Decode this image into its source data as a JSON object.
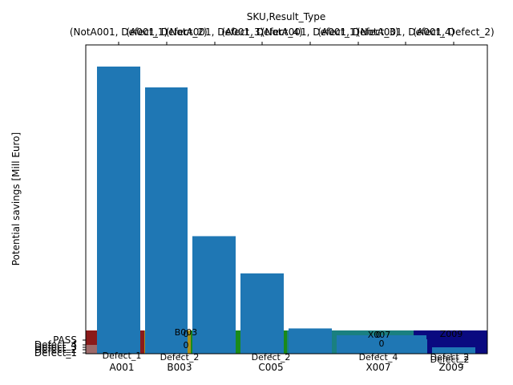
{
  "chart_data": {
    "type": "bar",
    "title": "",
    "top_axis": {
      "title": "SKU,Result_Type",
      "tick_labels": [
        "(NotA001, Defect_1)",
        "(A001, Defect_2)",
        "(NotA001, Defect_3)",
        "(A001, Defect_4)",
        "(NotA001, Defect_1)",
        "(A001, Defect_3)",
        "(NotA001, Defect_4)",
        "(A001, Defect_2)"
      ]
    },
    "ylabel": "Potential savings [Mill Euro]",
    "ylim": [
      0,
      100
    ],
    "left_ticks": [
      "PASS",
      "Defect_4",
      "Defect_3",
      "Defect_2",
      "Defect_1"
    ],
    "bottom_ticks": [
      "A001",
      "B003",
      "C005",
      "X007",
      "Z009"
    ],
    "groups": [
      {
        "sku": "A001",
        "color": "#8b1a1a",
        "label": "A001",
        "header": ""
      },
      {
        "sku": "B003",
        "color": "#a8901e",
        "label": "B003",
        "header": "B003"
      },
      {
        "sku": "C005",
        "color": "#1a8a1a",
        "label": "C005",
        "header": ""
      },
      {
        "sku": "X007",
        "color": "#1a8080",
        "label": "X007",
        "header": "X007"
      },
      {
        "sku": "Z009",
        "color": "#0a0a80",
        "label": "Z009",
        "header": "Z009"
      }
    ],
    "series": [
      {
        "values": [
          96.5,
          89.5,
          39.5,
          27.0,
          8.5,
          6.0,
          4.5,
          2.0
        ]
      }
    ],
    "categories": [
      "(NotA001, Defect_1)",
      "(A001, Defect_2)",
      "(NotA001, Defect_3)",
      "(A001, Defect_4)",
      "(NotA001, Defect_1)",
      "(A001, Defect_3)",
      "(NotA001, Defect_4)",
      "(A001, Defect_2)"
    ],
    "inner_labels": [
      "Defect_1",
      "Defect_2",
      "Defect_2",
      "Defect_4",
      "Defect_2",
      "Defect_2"
    ],
    "inner_values": [
      "0",
      "0",
      "0",
      "0"
    ],
    "bar_color": "#1f77b4"
  }
}
